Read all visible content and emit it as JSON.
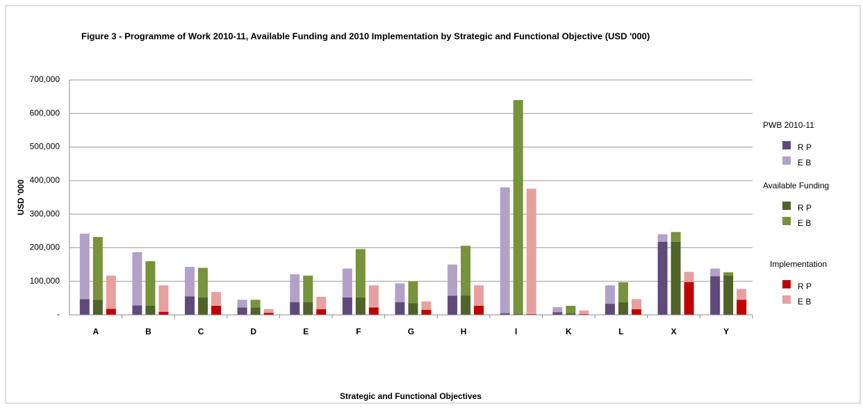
{
  "chart_data": {
    "type": "grouped-stacked-bar",
    "title": "Figure 3 - Programme of Work 2010-11,  Available Funding and 2010  Implementation by Strategic and Functional Objective  (USD '000)",
    "x_label": "Strategic and Functional Objectives",
    "y_label": "USD '000",
    "categories": [
      "A",
      "B",
      "C",
      "D",
      "E",
      "F",
      "G",
      "H",
      "I",
      "K",
      "L",
      "X",
      "Y"
    ],
    "ylim": [
      0,
      700000
    ],
    "yticks": [
      {
        "value": 0,
        "label": "-"
      },
      {
        "value": 100000,
        "label": "100,000"
      },
      {
        "value": 200000,
        "label": "200,000"
      },
      {
        "value": 300000,
        "label": "300,000"
      },
      {
        "value": 400000,
        "label": "400,000"
      },
      {
        "value": 500000,
        "label": "500,000"
      },
      {
        "value": 600000,
        "label": "600,000"
      },
      {
        "value": 700000,
        "label": "700,000"
      }
    ],
    "grid": true,
    "groups": [
      {
        "name": "PWB 2010-11",
        "series": [
          {
            "name": "R P",
            "color": "#604a7b",
            "values": [
              47000,
              28000,
              55000,
              22000,
              38000,
              52000,
              38000,
              57000,
              5000,
              8000,
              33000,
              218000,
              115000
            ]
          },
          {
            "name": "E B",
            "color": "#b3a2c7",
            "values": [
              195000,
              159000,
              88000,
              23000,
              83000,
              86000,
              56000,
              93000,
              375000,
              15000,
              55000,
              22000,
              23000
            ]
          }
        ]
      },
      {
        "name": "Available Funding",
        "series": [
          {
            "name": "R P",
            "color": "#4f6228",
            "values": [
              45000,
              27000,
              52000,
              22000,
              38000,
              52000,
              35000,
              57000,
              3000,
              5000,
              38000,
              218000,
              117000
            ]
          },
          {
            "name": "E B",
            "color": "#77933c",
            "values": [
              187000,
              133000,
              88000,
              23000,
              79000,
              144000,
              65000,
              149000,
              637000,
              22000,
              59000,
              29000,
              10000
            ]
          }
        ]
      },
      {
        "name": "Implementation",
        "series": [
          {
            "name": "R P",
            "color": "#c00000",
            "values": [
              18000,
              9000,
              27000,
              6000,
              17000,
              22000,
              15000,
              27000,
              2000,
              2000,
              17000,
              98000,
              45000
            ]
          },
          {
            "name": "E B",
            "color": "#e6a0a0",
            "values": [
              99000,
              79000,
              41000,
              11000,
              37000,
              66000,
              25000,
              61000,
              374000,
              11000,
              30000,
              30000,
              32000
            ]
          }
        ]
      }
    ]
  }
}
